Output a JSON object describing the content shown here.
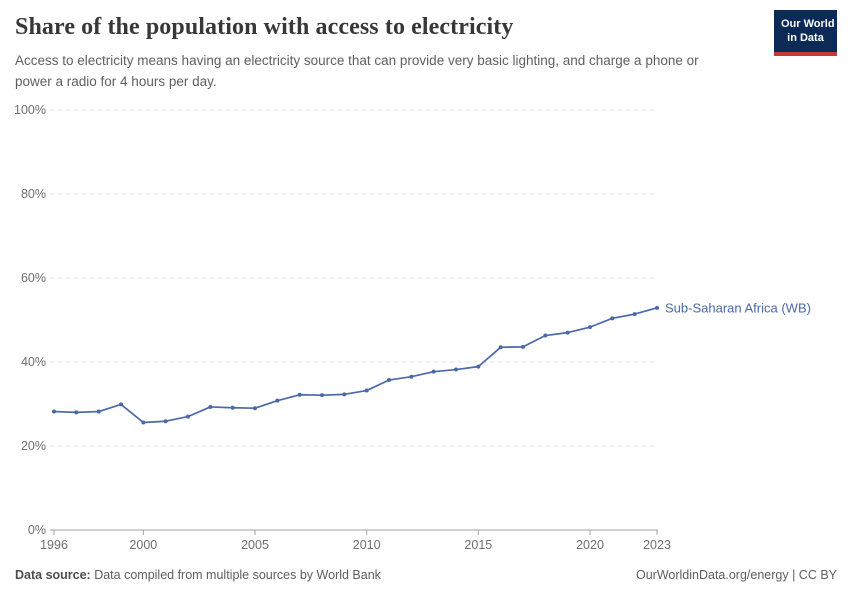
{
  "header": {
    "title": "Share of the population with access to electricity",
    "subtitle": "Access to electricity means having an electricity source that can provide very basic lighting, and charge a phone or power a radio for 4 hours per day.",
    "logo": {
      "line1": "Our World",
      "line2": "in Data",
      "bg_color": "#0c2a56",
      "bar_color": "#c23b33"
    }
  },
  "chart_data": {
    "type": "line",
    "title": "Share of the population with access to electricity",
    "series": [
      {
        "name": "Sub-Saharan Africa (WB)",
        "color": "#4a69a8",
        "x": [
          1996,
          1997,
          1998,
          1999,
          2000,
          2001,
          2002,
          2003,
          2004,
          2005,
          2006,
          2007,
          2008,
          2009,
          2010,
          2011,
          2012,
          2013,
          2014,
          2015,
          2016,
          2017,
          2018,
          2019,
          2020,
          2021,
          2022,
          2023
        ],
        "values": [
          28.2,
          28.0,
          28.2,
          29.9,
          25.6,
          25.9,
          27.0,
          29.3,
          29.1,
          29.0,
          30.8,
          32.2,
          32.1,
          32.3,
          33.2,
          35.7,
          36.5,
          37.7,
          38.2,
          38.9,
          43.5,
          43.6,
          46.3,
          47.0,
          48.3,
          50.4,
          51.4,
          52.9
        ]
      }
    ],
    "xlim": [
      1996,
      2023
    ],
    "ylim": [
      0,
      100
    ],
    "x_ticks": [
      1996,
      2000,
      2005,
      2010,
      2015,
      2020,
      2023
    ],
    "y_ticks": [
      0,
      20,
      40,
      60,
      80,
      100
    ],
    "y_tick_suffix": "%",
    "grid": true,
    "grid_color": "#e0e0e0",
    "axis_color": "#a3a3a3",
    "tick_label_color": "#6e6e6e",
    "legend_position": "end-of-line-label"
  },
  "footer": {
    "source_label": "Data source:",
    "source_text": " Data compiled from multiple sources by World Bank",
    "right_text": "OurWorldinData.org/energy | CC BY"
  }
}
